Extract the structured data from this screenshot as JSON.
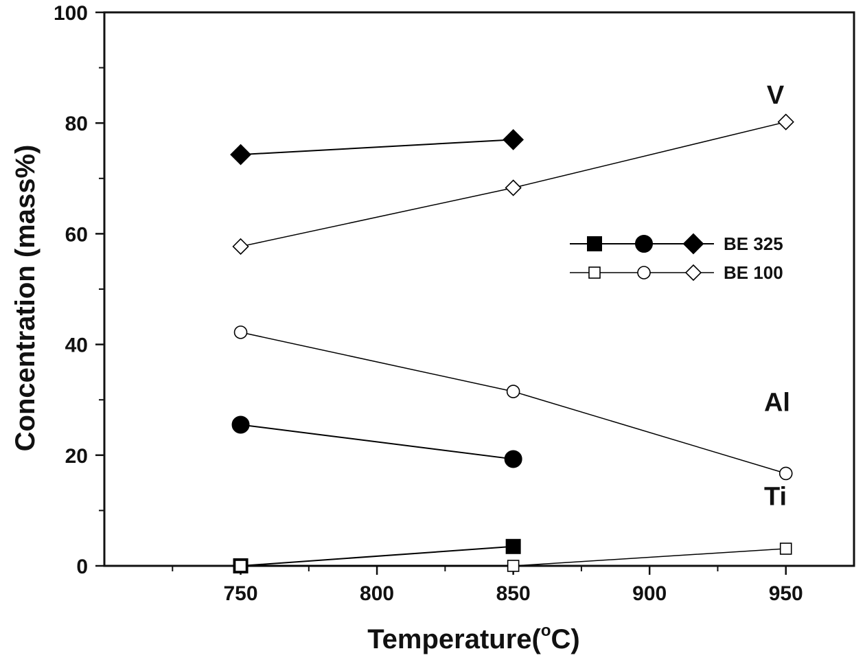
{
  "chart_data": {
    "type": "line",
    "xlabel": "Temperature(°C)",
    "xlabel_parts": {
      "main": "Temperature(",
      "degree": "o",
      "unit": "C)"
    },
    "ylabel": "Concentration (mass%)",
    "xlim": [
      700,
      975
    ],
    "ylim": [
      0,
      100
    ],
    "x_ticks": [
      750,
      800,
      850,
      900,
      950
    ],
    "y_ticks": [
      0,
      20,
      40,
      60,
      80,
      100
    ],
    "grid": false,
    "legend_position": "upper-right",
    "legend": [
      {
        "label": "BE 325",
        "fill": "filled",
        "markers": [
          "square",
          "circle",
          "diamond"
        ]
      },
      {
        "label": "BE 100",
        "fill": "open",
        "markers": [
          "square",
          "circle",
          "diamond"
        ]
      }
    ],
    "series": [
      {
        "element": "V",
        "group": "BE 325",
        "marker": "diamond",
        "fill": "filled",
        "x": [
          750,
          850
        ],
        "y": [
          74.3,
          77.0
        ]
      },
      {
        "element": "V",
        "group": "BE 100",
        "marker": "diamond",
        "fill": "open",
        "x": [
          750,
          850,
          950
        ],
        "y": [
          57.7,
          68.3,
          80.2
        ]
      },
      {
        "element": "Al",
        "group": "BE 100",
        "marker": "circle",
        "fill": "open",
        "x": [
          750,
          850,
          950
        ],
        "y": [
          42.2,
          31.5,
          16.7
        ]
      },
      {
        "element": "Al",
        "group": "BE 325",
        "marker": "circle",
        "fill": "filled",
        "x": [
          750,
          850
        ],
        "y": [
          25.5,
          19.3
        ]
      },
      {
        "element": "Ti",
        "group": "BE 325",
        "marker": "square",
        "fill": "filled",
        "x": [
          750,
          850
        ],
        "y": [
          0.0,
          3.5
        ]
      },
      {
        "element": "Ti",
        "group": "BE 100",
        "marker": "square",
        "fill": "open",
        "x": [
          750,
          850,
          950
        ],
        "y": [
          0.0,
          0.0,
          3.1
        ]
      }
    ],
    "annotations": [
      {
        "text": "V",
        "x": 943,
        "y": 83.5
      },
      {
        "text": "Al",
        "x": 942,
        "y": 28.0
      },
      {
        "text": "Ti",
        "x": 942,
        "y": 11.0
      }
    ]
  }
}
